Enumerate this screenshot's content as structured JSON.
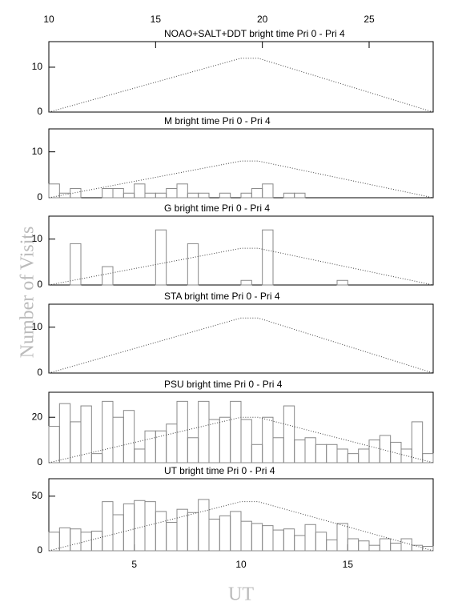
{
  "ylabel": "Number of Visits",
  "chart_data": [
    {
      "type": "histogram",
      "title": "NOAO+SALT+DDT   bright time Pri 0 - Pri 4",
      "xlim": [
        1,
        19
      ],
      "ylim": [
        0,
        15.7
      ],
      "yticks": [
        0,
        10
      ],
      "x2lim": [
        10,
        28
      ],
      "x2ticks": [
        10,
        15,
        20,
        25
      ],
      "line": {
        "x": [
          1,
          10,
          10.8,
          19
        ],
        "values": [
          0,
          12,
          12,
          0
        ]
      }
    },
    {
      "type": "histogram",
      "title": "M    bright time Pri 0 - Pri 4",
      "xlim": [
        1,
        19
      ],
      "ylim": [
        0,
        15
      ],
      "yticks": [
        0,
        10
      ],
      "bins": [
        1,
        1.5,
        2,
        2.5,
        3,
        3.5,
        4,
        4.5,
        5,
        5.5,
        6,
        6.5,
        7,
        7.5,
        8,
        8.5,
        9,
        9.5,
        10,
        10.5,
        11,
        11.5,
        12,
        12.5,
        13,
        13.5,
        14,
        14.5,
        15,
        15.5,
        16,
        16.5,
        17,
        17.5,
        18,
        18.5,
        19
      ],
      "values": [
        3,
        1,
        2,
        0,
        0,
        2,
        2,
        1,
        3,
        1,
        1,
        2,
        3,
        1,
        1,
        0,
        1,
        0,
        1,
        2,
        3,
        0,
        1,
        1,
        0,
        0,
        0,
        0,
        0,
        0,
        0,
        0,
        0,
        0,
        0,
        0
      ],
      "line": {
        "x": [
          1,
          10,
          10.8,
          19
        ],
        "values": [
          0,
          8,
          8,
          0
        ]
      }
    },
    {
      "type": "histogram",
      "title": "G    bright time Pri 0 - Pri 4",
      "xlim": [
        1,
        19
      ],
      "ylim": [
        0,
        15
      ],
      "yticks": [
        0,
        10
      ],
      "bins": [
        1,
        1.5,
        2,
        2.5,
        3,
        3.5,
        4,
        4.5,
        5,
        5.5,
        6,
        6.5,
        7,
        7.5,
        8,
        8.5,
        9,
        9.5,
        10,
        10.5,
        11,
        11.5,
        12,
        12.5,
        13,
        13.5,
        14,
        14.5,
        15,
        15.5,
        16,
        16.5,
        17,
        17.5,
        18,
        18.5,
        19
      ],
      "values": [
        0,
        0,
        9,
        0,
        0,
        4,
        0,
        0,
        0,
        0,
        12,
        0,
        0,
        9,
        0,
        0,
        0,
        0,
        1,
        0,
        12,
        0,
        0,
        0,
        0,
        0,
        0,
        1,
        0,
        0,
        0,
        0,
        0,
        0,
        0,
        0
      ],
      "line": {
        "x": [
          1,
          10,
          10.8,
          19
        ],
        "values": [
          0,
          8,
          8,
          0
        ]
      }
    },
    {
      "type": "histogram",
      "title": "STA    bright time Pri 0 - Pri 4",
      "xlim": [
        1,
        19
      ],
      "ylim": [
        0,
        15
      ],
      "yticks": [
        0,
        10
      ],
      "line": {
        "x": [
          1,
          10,
          10.8,
          19
        ],
        "values": [
          0,
          12,
          12,
          0
        ]
      }
    },
    {
      "type": "histogram",
      "title": "PSU    bright time Pri 0 - Pri 4",
      "xlim": [
        1,
        19
      ],
      "ylim": [
        0,
        31
      ],
      "yticks": [
        0,
        20
      ],
      "bins": [
        1,
        1.5,
        2,
        2.5,
        3,
        3.5,
        4,
        4.5,
        5,
        5.5,
        6,
        6.5,
        7,
        7.5,
        8,
        8.5,
        9,
        9.5,
        10,
        10.5,
        11,
        11.5,
        12,
        12.5,
        13,
        13.5,
        14,
        14.5,
        15,
        15.5,
        16,
        16.5,
        17,
        17.5,
        18,
        18.5,
        19
      ],
      "values": [
        16,
        26,
        18,
        25,
        4,
        27,
        20,
        23,
        6,
        14,
        14,
        17,
        27,
        11,
        27,
        19,
        20,
        27,
        19,
        8,
        20,
        11,
        25,
        10,
        11,
        8,
        8,
        6,
        4,
        6,
        10,
        12,
        9,
        6,
        18,
        4
      ],
      "line": {
        "x": [
          1,
          10,
          10.8,
          19
        ],
        "values": [
          0,
          20,
          20,
          0
        ]
      }
    },
    {
      "type": "histogram",
      "title": "UT    bright time Pri 0 - Pri 4",
      "xlim": [
        1,
        19
      ],
      "ylim": [
        0,
        66
      ],
      "yticks": [
        0,
        50
      ],
      "xticks": [
        5,
        10,
        15
      ],
      "xlabel": "UT",
      "bins": [
        1,
        1.5,
        2,
        2.5,
        3,
        3.5,
        4,
        4.5,
        5,
        5.5,
        6,
        6.5,
        7,
        7.5,
        8,
        8.5,
        9,
        9.5,
        10,
        10.5,
        11,
        11.5,
        12,
        12.5,
        13,
        13.5,
        14,
        14.5,
        15,
        15.5,
        16,
        16.5,
        17,
        17.5,
        18,
        18.5,
        19
      ],
      "values": [
        17,
        21,
        20,
        17,
        18,
        45,
        33,
        43,
        46,
        45,
        36,
        26,
        38,
        35,
        47,
        29,
        32,
        36,
        27,
        25,
        23,
        19,
        20,
        14,
        24,
        17,
        10,
        25,
        11,
        9,
        5,
        11,
        7,
        11,
        5,
        4
      ],
      "line": {
        "x": [
          1,
          10,
          10.8,
          19
        ],
        "values": [
          0,
          45,
          45,
          0
        ]
      }
    }
  ]
}
